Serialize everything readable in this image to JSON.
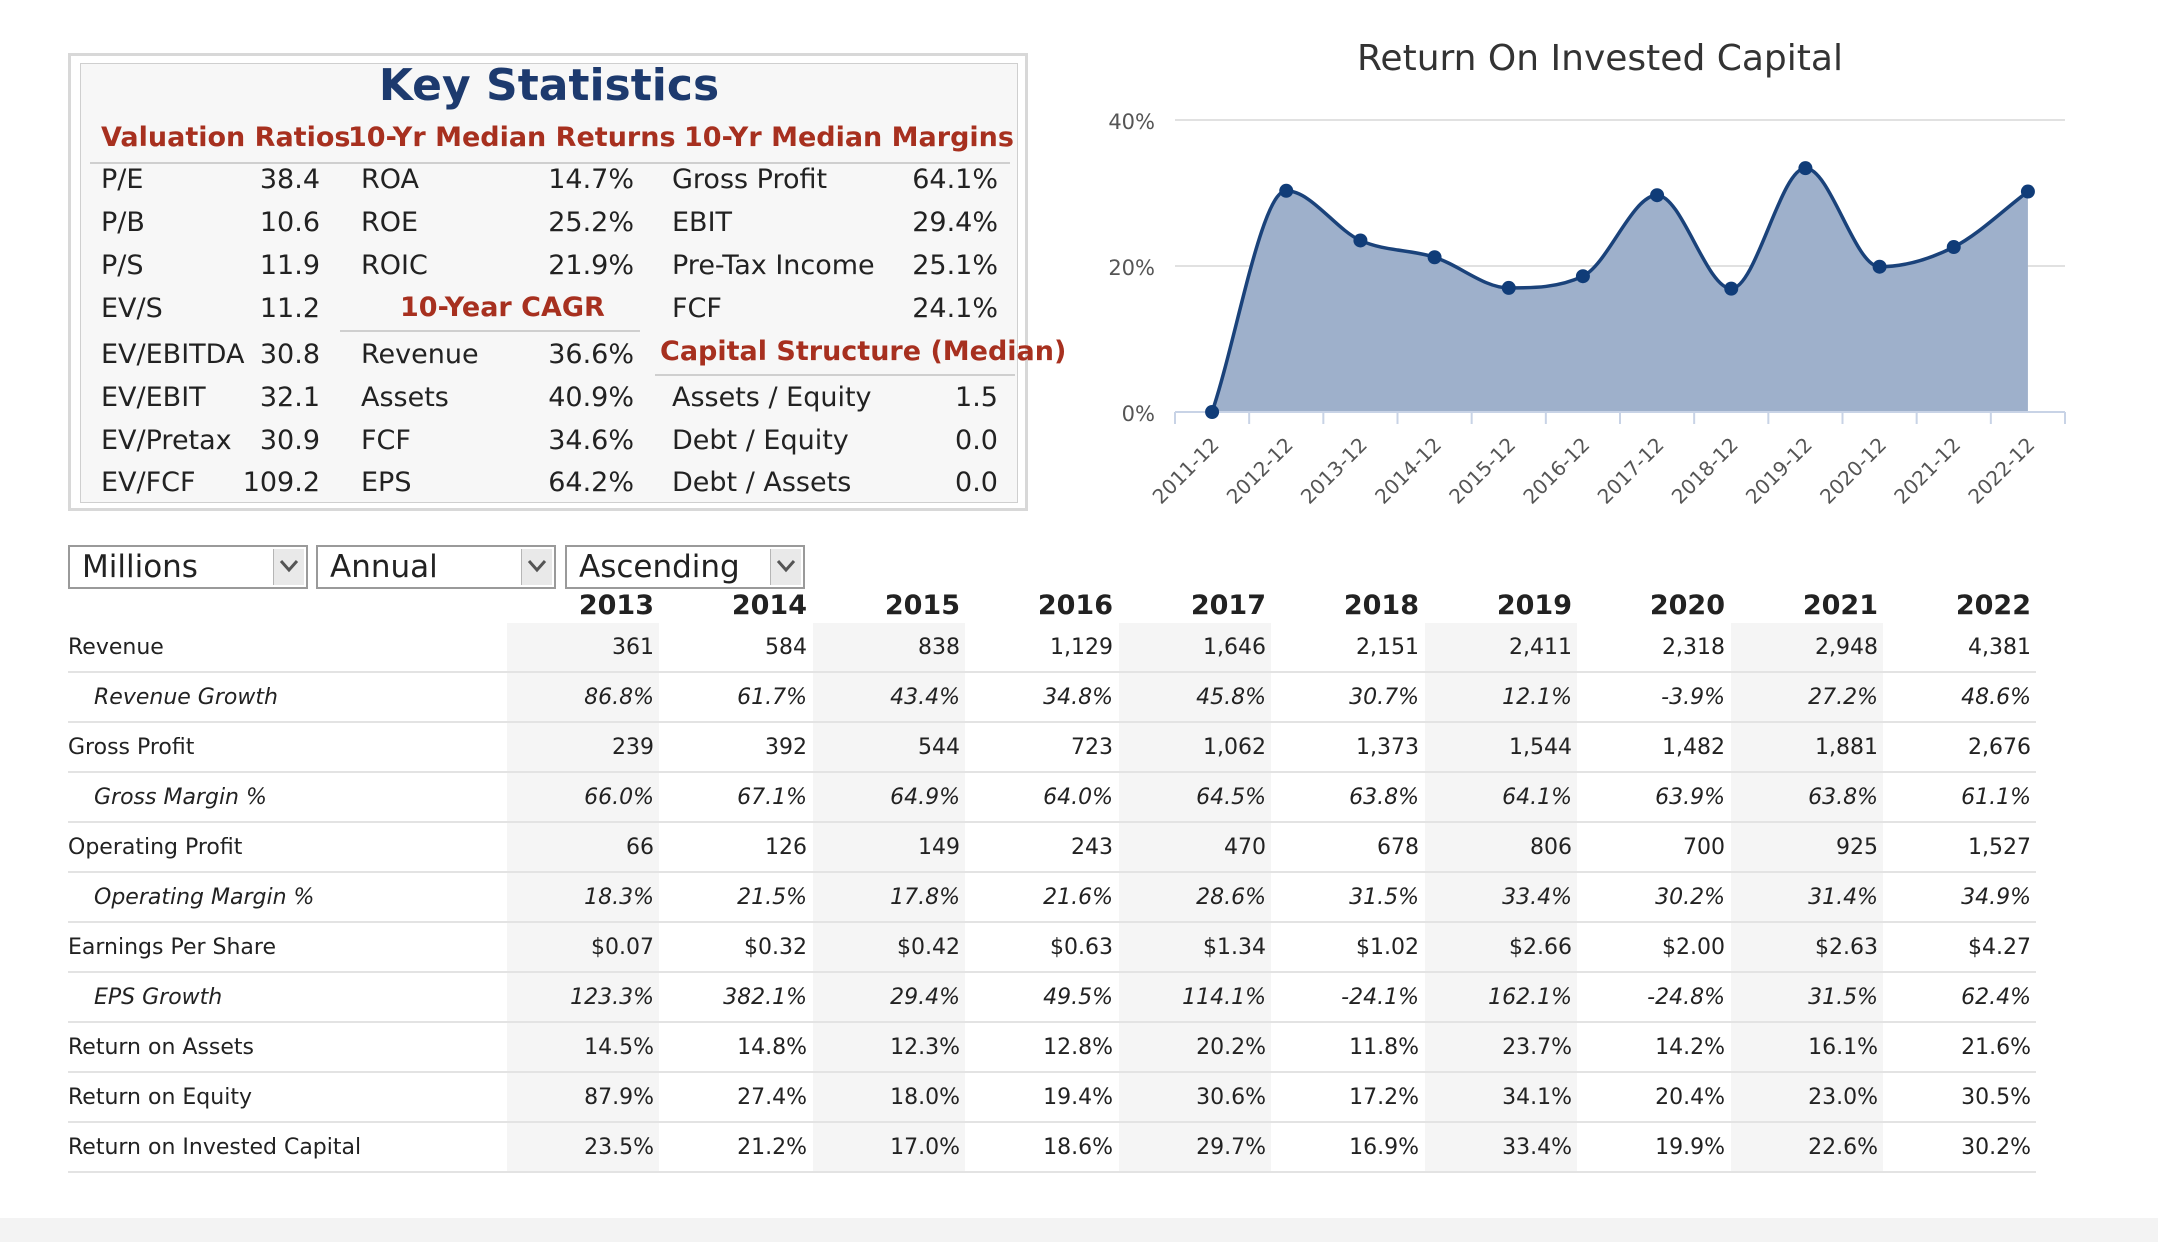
{
  "key_statistics": {
    "title": "Key Statistics",
    "valuation_ratios": {
      "heading": "Valuation Ratios",
      "items": [
        {
          "label": "P/E",
          "value": "38.4"
        },
        {
          "label": "P/B",
          "value": "10.6"
        },
        {
          "label": "P/S",
          "value": "11.9"
        },
        {
          "label": "EV/S",
          "value": "11.2"
        },
        {
          "label": "EV/EBITDA",
          "value": "30.8"
        },
        {
          "label": "EV/EBIT",
          "value": "32.1"
        },
        {
          "label": "EV/Pretax",
          "value": "30.9"
        },
        {
          "label": "EV/FCF",
          "value": "109.2"
        }
      ]
    },
    "median_returns": {
      "heading": "10-Yr Median Returns",
      "items": [
        {
          "label": "ROA",
          "value": "14.7%"
        },
        {
          "label": "ROE",
          "value": "25.2%"
        },
        {
          "label": "ROIC",
          "value": "21.9%"
        }
      ]
    },
    "cagr": {
      "heading": "10-Year CAGR",
      "items": [
        {
          "label": "Revenue",
          "value": "36.6%"
        },
        {
          "label": "Assets",
          "value": "40.9%"
        },
        {
          "label": "FCF",
          "value": "34.6%"
        },
        {
          "label": "EPS",
          "value": "64.2%"
        }
      ]
    },
    "median_margins": {
      "heading": "10-Yr Median Margins",
      "items": [
        {
          "label": "Gross Profit",
          "value": "64.1%"
        },
        {
          "label": "EBIT",
          "value": "29.4%"
        },
        {
          "label": "Pre-Tax Income",
          "value": "25.1%"
        },
        {
          "label": "FCF",
          "value": "24.1%"
        }
      ]
    },
    "capital_structure": {
      "heading": "Capital Structure (Median)",
      "items": [
        {
          "label": "Assets / Equity",
          "value": "1.5"
        },
        {
          "label": "Debt / Equity",
          "value": "0.0"
        },
        {
          "label": "Debt / Assets",
          "value": "0.0"
        }
      ]
    }
  },
  "chart_data": {
    "type": "area",
    "title": "Return On Invested Capital",
    "categories": [
      "2011-12",
      "2012-12",
      "2013-12",
      "2014-12",
      "2015-12",
      "2016-12",
      "2017-12",
      "2018-12",
      "2019-12",
      "2020-12",
      "2021-12",
      "2022-12"
    ],
    "values": [
      0,
      30.3,
      23.5,
      21.2,
      17.0,
      18.6,
      29.7,
      16.9,
      33.4,
      19.9,
      22.6,
      30.2
    ],
    "ylim": [
      0,
      40
    ],
    "yticks": [
      "0%",
      "20%",
      "40%"
    ],
    "grid": true,
    "legend": "none",
    "fill_color": "#9eb0cb",
    "line_color": "#1a427a",
    "point_color": "#103c78"
  },
  "controls": {
    "units": "Millions",
    "period": "Annual",
    "order": "Ascending"
  },
  "table": {
    "years": [
      "2013",
      "2014",
      "2015",
      "2016",
      "2017",
      "2018",
      "2019",
      "2020",
      "2021",
      "2022"
    ],
    "rows": [
      {
        "label": "Revenue",
        "italic": false,
        "values": [
          "361",
          "584",
          "838",
          "1,129",
          "1,646",
          "2,151",
          "2,411",
          "2,318",
          "2,948",
          "4,381"
        ]
      },
      {
        "label": "Revenue Growth",
        "italic": true,
        "values": [
          "86.8%",
          "61.7%",
          "43.4%",
          "34.8%",
          "45.8%",
          "30.7%",
          "12.1%",
          "-3.9%",
          "27.2%",
          "48.6%"
        ]
      },
      {
        "label": "Gross Profit",
        "italic": false,
        "values": [
          "239",
          "392",
          "544",
          "723",
          "1,062",
          "1,373",
          "1,544",
          "1,482",
          "1,881",
          "2,676"
        ]
      },
      {
        "label": "Gross Margin %",
        "italic": true,
        "values": [
          "66.0%",
          "67.1%",
          "64.9%",
          "64.0%",
          "64.5%",
          "63.8%",
          "64.1%",
          "63.9%",
          "63.8%",
          "61.1%"
        ]
      },
      {
        "label": "Operating Profit",
        "italic": false,
        "values": [
          "66",
          "126",
          "149",
          "243",
          "470",
          "678",
          "806",
          "700",
          "925",
          "1,527"
        ]
      },
      {
        "label": "Operating Margin %",
        "italic": true,
        "values": [
          "18.3%",
          "21.5%",
          "17.8%",
          "21.6%",
          "28.6%",
          "31.5%",
          "33.4%",
          "30.2%",
          "31.4%",
          "34.9%"
        ]
      },
      {
        "label": "Earnings Per Share",
        "italic": false,
        "values": [
          "$0.07",
          "$0.32",
          "$0.42",
          "$0.63",
          "$1.34",
          "$1.02",
          "$2.66",
          "$2.00",
          "$2.63",
          "$4.27"
        ]
      },
      {
        "label": "EPS Growth",
        "italic": true,
        "values": [
          "123.3%",
          "382.1%",
          "29.4%",
          "49.5%",
          "114.1%",
          "-24.1%",
          "162.1%",
          "-24.8%",
          "31.5%",
          "62.4%"
        ]
      },
      {
        "label": "Return on Assets",
        "italic": false,
        "values": [
          "14.5%",
          "14.8%",
          "12.3%",
          "12.8%",
          "20.2%",
          "11.8%",
          "23.7%",
          "14.2%",
          "16.1%",
          "21.6%"
        ]
      },
      {
        "label": "Return on Equity",
        "italic": false,
        "values": [
          "87.9%",
          "27.4%",
          "18.0%",
          "19.4%",
          "30.6%",
          "17.2%",
          "34.1%",
          "20.4%",
          "23.0%",
          "30.5%"
        ]
      },
      {
        "label": "Return on Invested Capital",
        "italic": false,
        "values": [
          "23.5%",
          "21.2%",
          "17.0%",
          "18.6%",
          "29.7%",
          "16.9%",
          "33.4%",
          "19.9%",
          "22.6%",
          "30.2%"
        ]
      }
    ]
  }
}
